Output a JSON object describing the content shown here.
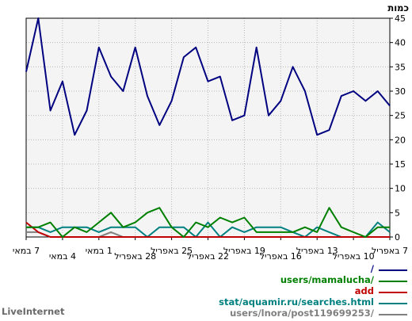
{
  "brand": "LiveInternet",
  "chart_data": {
    "type": "line",
    "ylabel": "כמות",
    "ylim": [
      0,
      45
    ],
    "yticks": [
      0,
      5,
      10,
      15,
      20,
      25,
      30,
      35,
      40,
      45
    ],
    "grid": true,
    "legend_position": "bottom-right",
    "x_tick_labels": [
      {
        "label": "7 במאי",
        "row": 0,
        "x_index": 0
      },
      {
        "label": "4 במאי",
        "row": 1,
        "x_index": 3
      },
      {
        "label": "1 במאי",
        "row": 0,
        "x_index": 6
      },
      {
        "label": "28 באפריל",
        "row": 1,
        "x_index": 9
      },
      {
        "label": "25 באפריל",
        "row": 0,
        "x_index": 12
      },
      {
        "label": "22 באפריל",
        "row": 1,
        "x_index": 15
      },
      {
        "label": "19 באפריל",
        "row": 0,
        "x_index": 18
      },
      {
        "label": "16 באפריל",
        "row": 1,
        "x_index": 21
      },
      {
        "label": "13 באפריל",
        "row": 0,
        "x_index": 24
      },
      {
        "label": "10 באפריל",
        "row": 1,
        "x_index": 27
      },
      {
        "label": "7 באפריל",
        "row": 0,
        "x_index": 30
      }
    ],
    "series": [
      {
        "name": "/",
        "color": "#000080",
        "values": [
          34,
          45,
          26,
          32,
          21,
          26,
          39,
          33,
          30,
          39,
          29,
          23,
          28,
          37,
          39,
          32,
          33,
          24,
          25,
          39,
          25,
          28,
          35,
          30,
          21,
          22,
          29,
          30,
          28,
          30,
          27
        ]
      },
      {
        "name": "users/mamalucha/",
        "color": "#008000",
        "values": [
          2,
          2,
          3,
          0,
          2,
          1,
          3,
          5,
          2,
          3,
          5,
          6,
          2,
          0,
          3,
          2,
          4,
          3,
          4,
          1,
          1,
          1,
          1,
          2,
          1,
          6,
          2,
          1,
          0,
          2,
          2
        ]
      },
      {
        "name": "add",
        "color": "#c00000",
        "values": [
          3,
          1,
          0,
          0,
          0,
          0,
          0,
          0,
          0,
          0,
          0,
          0,
          0,
          0,
          0,
          0,
          0,
          0,
          0,
          0,
          0,
          0,
          0,
          0,
          0,
          0,
          0,
          0,
          0,
          0,
          0
        ]
      },
      {
        "name": "stat/aquamir.ru/searches.html",
        "color": "#008080",
        "values": [
          2,
          2,
          1,
          2,
          2,
          2,
          1,
          2,
          2,
          2,
          0,
          2,
          2,
          2,
          0,
          3,
          0,
          2,
          1,
          2,
          2,
          2,
          1,
          0,
          2,
          1,
          0,
          0,
          0,
          3,
          1
        ]
      },
      {
        "name": "users/lnora/post119699253/",
        "color": "#808080",
        "values": [
          1,
          1,
          0,
          0,
          0,
          0,
          0,
          1,
          0,
          0,
          0,
          0,
          0,
          0,
          0,
          0,
          0,
          0,
          0,
          0,
          0,
          0,
          0,
          0,
          0,
          0,
          0,
          0,
          0,
          0,
          0
        ]
      }
    ]
  }
}
